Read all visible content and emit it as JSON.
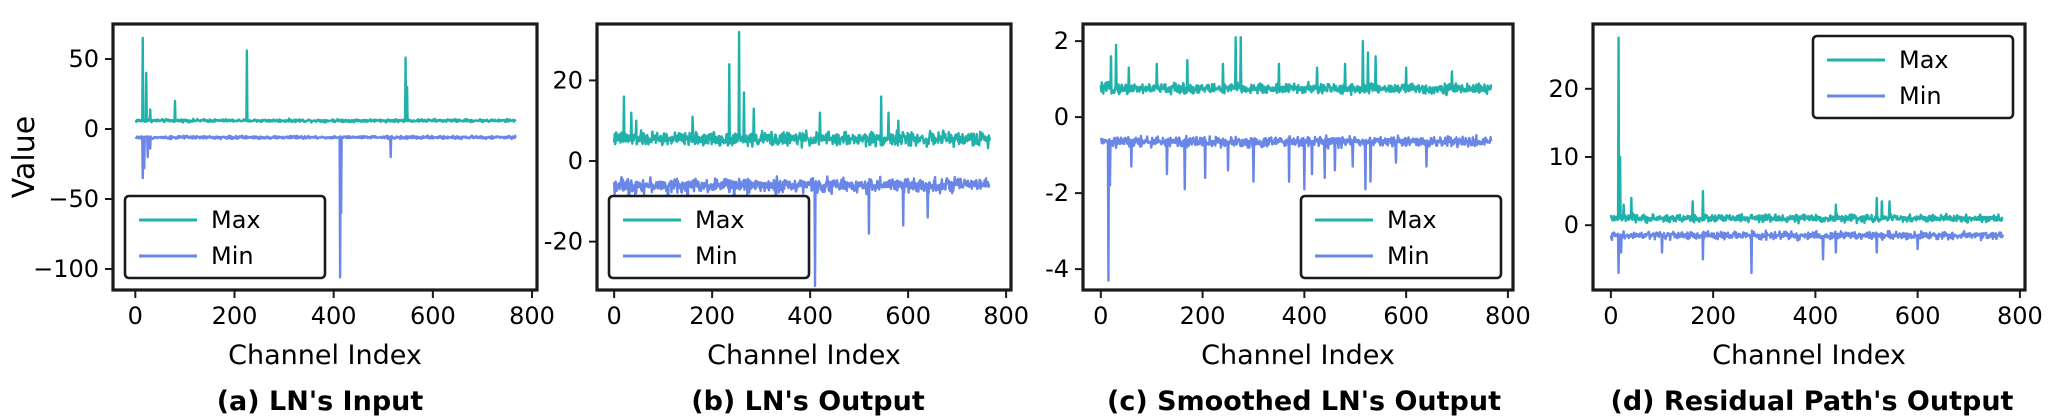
{
  "colors": {
    "max": "#20b2aa",
    "min": "#6a87e8",
    "frame": "#1a1a1a",
    "text": "#000000"
  },
  "chart_data": [
    {
      "type": "line",
      "caption": "(a) LN's Input",
      "xlabel": "Channel Index",
      "ylabel": "Value",
      "xlim": [
        -45,
        810
      ],
      "ylim": [
        -115,
        75
      ],
      "xticks": [
        0,
        200,
        400,
        600,
        800
      ],
      "xtick_labels": [
        "0",
        "200",
        "400",
        "600",
        "800"
      ],
      "yticks": [
        50,
        0,
        -50,
        -100
      ],
      "ytick_labels": [
        "50",
        "0",
        "−50",
        "−100"
      ],
      "legend_position": "lower-left",
      "series": [
        {
          "name": "Max",
          "baseline": 6,
          "jitter": 1.5,
          "n": 768,
          "spikes": [
            [
              15,
              65
            ],
            [
              22,
              40
            ],
            [
              30,
              14
            ],
            [
              80,
              20
            ],
            [
              225,
              56
            ],
            [
              545,
              51
            ],
            [
              548,
              30
            ]
          ]
        },
        {
          "name": "Min",
          "baseline": -6,
          "jitter": 1.5,
          "n": 768,
          "spikes": [
            [
              15,
              -35
            ],
            [
              18,
              -28
            ],
            [
              25,
              -20
            ],
            [
              30,
              -14
            ],
            [
              413,
              -106
            ],
            [
              415,
              -60
            ],
            [
              515,
              -20
            ]
          ]
        }
      ]
    },
    {
      "type": "line",
      "caption": "(b) LN's Output",
      "xlabel": "Channel Index",
      "ylabel": "",
      "xlim": [
        -35,
        810
      ],
      "ylim": [
        -32,
        34
      ],
      "xticks": [
        0,
        200,
        400,
        600,
        800
      ],
      "xtick_labels": [
        "0",
        "200",
        "400",
        "600",
        "800"
      ],
      "yticks": [
        20,
        0,
        -20
      ],
      "ytick_labels": [
        "20",
        "0",
        "-20"
      ],
      "legend_position": "lower-left",
      "series": [
        {
          "name": "Max",
          "baseline": 5.5,
          "jitter": 2.5,
          "n": 768,
          "spikes": [
            [
              20,
              16
            ],
            [
              35,
              12
            ],
            [
              45,
              10
            ],
            [
              160,
              11
            ],
            [
              235,
              24
            ],
            [
              255,
              32
            ],
            [
              265,
              17
            ],
            [
              285,
              13
            ],
            [
              420,
              12
            ],
            [
              545,
              16
            ],
            [
              560,
              12
            ],
            [
              580,
              10
            ]
          ]
        },
        {
          "name": "Min",
          "baseline": -6,
          "jitter": 2.5,
          "n": 768,
          "spikes": [
            [
              30,
              -20
            ],
            [
              110,
              -14
            ],
            [
              150,
              -16
            ],
            [
              245,
              -16
            ],
            [
              330,
              -14
            ],
            [
              410,
              -31
            ],
            [
              520,
              -18
            ],
            [
              590,
              -16
            ],
            [
              640,
              -14
            ]
          ]
        }
      ]
    },
    {
      "type": "line",
      "caption": "(c) Smoothed LN's Output",
      "xlabel": "Channel Index",
      "ylabel": "",
      "xlim": [
        -35,
        810
      ],
      "ylim": [
        -4.55,
        2.45
      ],
      "xticks": [
        0,
        200,
        400,
        600,
        800
      ],
      "xtick_labels": [
        "0",
        "200",
        "400",
        "600",
        "800"
      ],
      "yticks": [
        2,
        0,
        -2,
        -4
      ],
      "ytick_labels": [
        "2",
        "0",
        "-2",
        "-4"
      ],
      "legend_position": "lower-right",
      "series": [
        {
          "name": "Max",
          "baseline": 0.75,
          "jitter": 0.2,
          "n": 768,
          "spikes": [
            [
              20,
              1.6
            ],
            [
              30,
              1.9
            ],
            [
              55,
              1.3
            ],
            [
              110,
              1.4
            ],
            [
              170,
              1.5
            ],
            [
              240,
              1.4
            ],
            [
              265,
              2.1
            ],
            [
              275,
              2.1
            ],
            [
              350,
              1.4
            ],
            [
              425,
              1.3
            ],
            [
              480,
              1.4
            ],
            [
              515,
              2.0
            ],
            [
              525,
              1.7
            ],
            [
              540,
              1.6
            ],
            [
              600,
              1.3
            ],
            [
              690,
              1.2
            ]
          ]
        },
        {
          "name": "Min",
          "baseline": -0.65,
          "jitter": 0.2,
          "n": 768,
          "spikes": [
            [
              15,
              -4.3
            ],
            [
              18,
              -1.8
            ],
            [
              60,
              -1.3
            ],
            [
              130,
              -1.5
            ],
            [
              165,
              -1.9
            ],
            [
              205,
              -1.6
            ],
            [
              250,
              -1.4
            ],
            [
              300,
              -1.7
            ],
            [
              370,
              -1.7
            ],
            [
              400,
              -1.9
            ],
            [
              415,
              -1.5
            ],
            [
              440,
              -1.6
            ],
            [
              460,
              -1.4
            ],
            [
              495,
              -1.3
            ],
            [
              520,
              -1.9
            ],
            [
              530,
              -1.7
            ],
            [
              580,
              -1.2
            ],
            [
              640,
              -1.3
            ]
          ]
        }
      ]
    },
    {
      "type": "line",
      "caption": "(d) Residual Path's Output",
      "xlabel": "Channel Index",
      "ylabel": "",
      "xlim": [
        -35,
        810
      ],
      "ylim": [
        -9.5,
        29.5
      ],
      "xticks": [
        0,
        200,
        400,
        600,
        800
      ],
      "xtick_labels": [
        "0",
        "200",
        "400",
        "600",
        "800"
      ],
      "yticks": [
        20,
        10,
        0
      ],
      "ytick_labels": [
        "20",
        "10",
        "0"
      ],
      "legend_position": "upper-right",
      "series": [
        {
          "name": "Max",
          "baseline": 1,
          "jitter": 0.8,
          "n": 768,
          "spikes": [
            [
              15,
              27.5
            ],
            [
              18,
              10
            ],
            [
              25,
              3
            ],
            [
              40,
              4
            ],
            [
              160,
              3.5
            ],
            [
              180,
              5
            ],
            [
              440,
              3
            ],
            [
              520,
              4
            ],
            [
              530,
              3.5
            ],
            [
              545,
              3.5
            ]
          ]
        },
        {
          "name": "Min",
          "baseline": -1.5,
          "jitter": 0.8,
          "n": 768,
          "spikes": [
            [
              15,
              -7
            ],
            [
              20,
              -4
            ],
            [
              100,
              -4
            ],
            [
              180,
              -5
            ],
            [
              275,
              -7
            ],
            [
              415,
              -5
            ],
            [
              440,
              -4
            ],
            [
              520,
              -4
            ],
            [
              600,
              -3.5
            ]
          ]
        }
      ]
    }
  ]
}
